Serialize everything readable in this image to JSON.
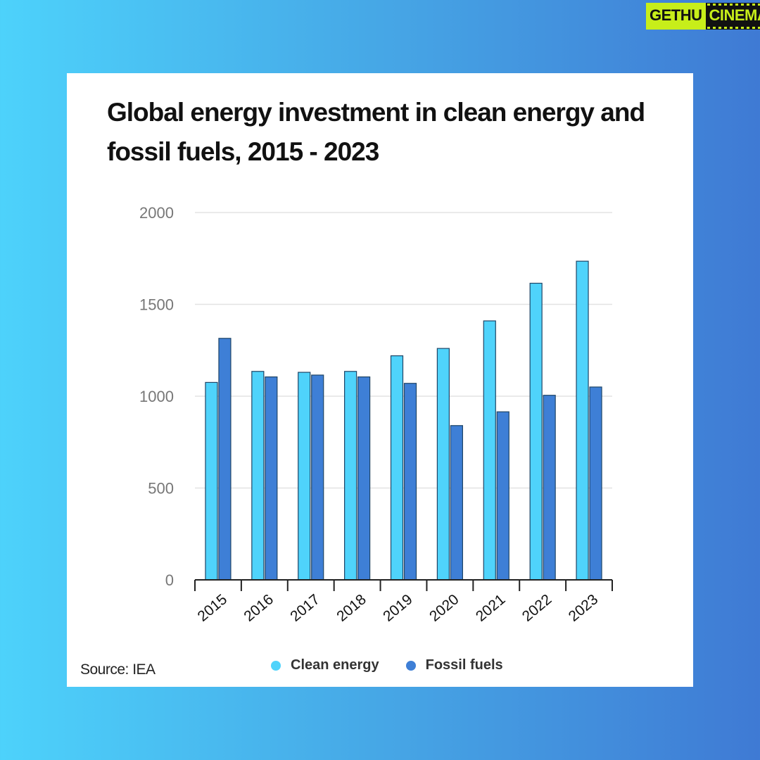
{
  "logo": {
    "part1": "GETHU",
    "part2": "CINEMA"
  },
  "card": {
    "source": "Source: IEA"
  },
  "colors": {
    "clean": "#4fd3fb",
    "fossil": "#3e7fd6",
    "grid": "#e3e3e3"
  },
  "chart_data": {
    "type": "bar",
    "title": "Global energy investment in clean energy and fossil fuels, 2015 - 2023",
    "xlabel": "",
    "ylabel": "",
    "categories": [
      "2015",
      "2016",
      "2017",
      "2018",
      "2019",
      "2020",
      "2021",
      "2022",
      "2023"
    ],
    "series": [
      {
        "name": "Clean energy",
        "color": "#4fd3fb",
        "values": [
          1075,
          1135,
          1130,
          1135,
          1220,
          1260,
          1410,
          1615,
          1735
        ]
      },
      {
        "name": "Fossil fuels",
        "color": "#3e7fd6",
        "values": [
          1315,
          1105,
          1115,
          1105,
          1070,
          840,
          915,
          1005,
          1050
        ]
      }
    ],
    "ylim": [
      0,
      2000
    ],
    "yticks": [
      "0",
      "500",
      "1000",
      "1500",
      "2000"
    ],
    "grid": true,
    "legend": "bottom"
  }
}
